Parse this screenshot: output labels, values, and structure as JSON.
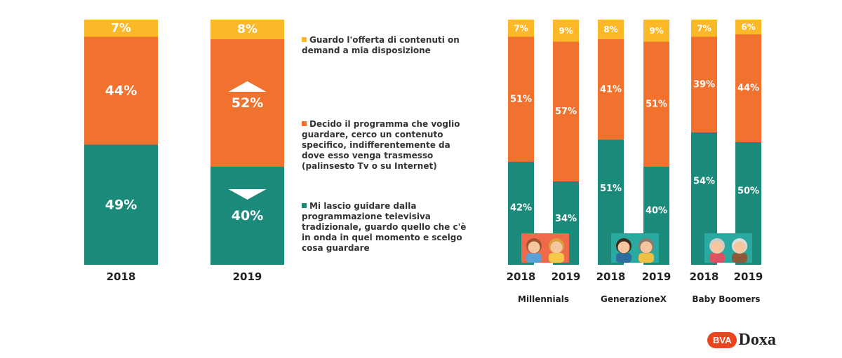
{
  "legend": [
    {
      "key": "on_demand",
      "color": "#fbb829",
      "text": "Guardo l'offerta di contenuti on demand a mia disposizione"
    },
    {
      "key": "decido",
      "color": "#f0722e",
      "text": "Decido il programma che voglio guardare, cerco un contenuto specifico, indifferentemente da dove esso venga trasmesso (palinsesto Tv o su Internet)"
    },
    {
      "key": "guidare",
      "color": "#1c8a7a",
      "text": "Mi lascio guidare dalla programmazione televisiva tradizionale, guardo quello che c'è in onda in quel momento e scelgo cosa guardare"
    }
  ],
  "logo": {
    "bva": "BVA",
    "doxa": "Doxa"
  },
  "chart_data": [
    {
      "type": "bar",
      "stacked": true,
      "categories": [
        "2018",
        "2019"
      ],
      "series": [
        {
          "key": "guidare",
          "values": [
            49,
            40
          ]
        },
        {
          "key": "decido",
          "values": [
            44,
            52
          ]
        },
        {
          "key": "on_demand",
          "values": [
            7,
            8
          ]
        }
      ],
      "value_labels": [
        [
          "49%",
          "44%",
          "7%"
        ],
        [
          "40%",
          "52%",
          "8%"
        ]
      ],
      "annotations": [
        {
          "category": "2019",
          "series": "decido",
          "marker": "up-triangle"
        },
        {
          "category": "2019",
          "series": "guidare",
          "marker": "down-triangle"
        }
      ]
    },
    {
      "type": "bar",
      "stacked": true,
      "groups": [
        {
          "name": "Millennials",
          "icon": "millennials-icon",
          "categories": [
            "2018",
            "2019"
          ],
          "guidare": [
            42,
            34
          ],
          "decido": [
            51,
            57
          ],
          "on_demand": [
            7,
            9
          ]
        },
        {
          "name": "GenerazioneX",
          "icon": "generation-x-icon",
          "categories": [
            "2018",
            "2019"
          ],
          "guidare": [
            51,
            40
          ],
          "decido": [
            41,
            51
          ],
          "on_demand": [
            8,
            9
          ]
        },
        {
          "name": "Baby Boomers",
          "icon": "baby-boomers-icon",
          "categories": [
            "2018",
            "2019"
          ],
          "guidare": [
            54,
            50
          ],
          "decido": [
            39,
            44
          ],
          "on_demand": [
            7,
            6
          ]
        }
      ]
    }
  ]
}
